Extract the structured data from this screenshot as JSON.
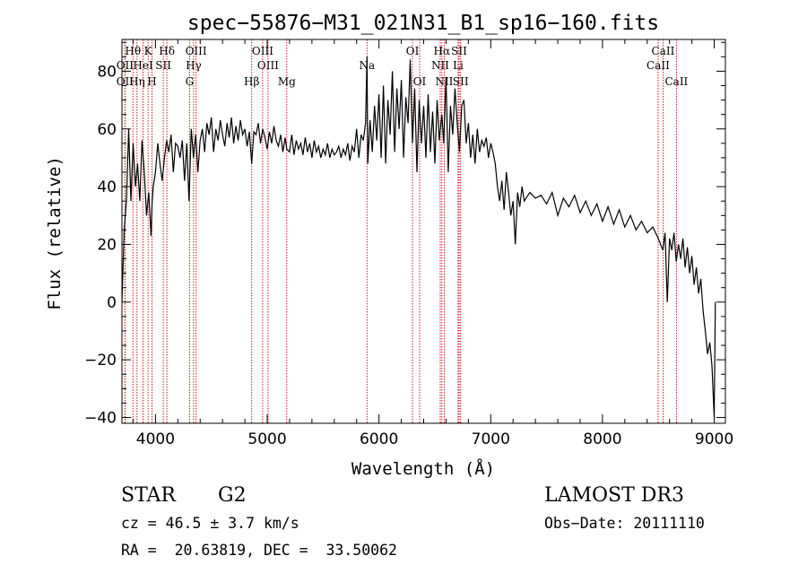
{
  "chart_data": {
    "type": "line",
    "title": "spec−55876−M31_021N31_B1_sp16−160.fits",
    "xlabel": "Wavelength (Å)",
    "ylabel": "Flux (relative)",
    "xlim": [
      3700,
      9100
    ],
    "ylim": [
      -42,
      91
    ],
    "xticks": [
      4000,
      5000,
      6000,
      7000,
      8000,
      9000
    ],
    "xtick_labels": [
      "4000",
      "5000",
      "6000",
      "7000",
      "8000",
      "9000"
    ],
    "yticks": [
      -40,
      -20,
      0,
      20,
      40,
      60,
      80
    ],
    "ytick_labels": [
      "−40",
      "−20",
      "0",
      "20",
      "40",
      "60",
      "80"
    ],
    "x_minor_step": 200,
    "y_minor_step": 5,
    "spectrum": {
      "name": "flux",
      "x": [
        3700,
        3720,
        3740,
        3760,
        3780,
        3800,
        3820,
        3840,
        3860,
        3880,
        3900,
        3920,
        3940,
        3960,
        3970,
        3980,
        4000,
        4020,
        4040,
        4060,
        4080,
        4100,
        4120,
        4140,
        4160,
        4180,
        4200,
        4220,
        4240,
        4260,
        4280,
        4300,
        4320,
        4340,
        4360,
        4380,
        4400,
        4420,
        4440,
        4460,
        4480,
        4500,
        4520,
        4540,
        4560,
        4580,
        4600,
        4620,
        4640,
        4660,
        4680,
        4700,
        4720,
        4740,
        4760,
        4780,
        4800,
        4820,
        4840,
        4861,
        4880,
        4900,
        4920,
        4940,
        4960,
        4980,
        5000,
        5020,
        5040,
        5060,
        5080,
        5100,
        5120,
        5140,
        5160,
        5175,
        5200,
        5220,
        5240,
        5260,
        5280,
        5300,
        5320,
        5340,
        5360,
        5380,
        5400,
        5420,
        5440,
        5460,
        5480,
        5500,
        5520,
        5540,
        5560,
        5580,
        5600,
        5620,
        5640,
        5660,
        5680,
        5700,
        5720,
        5740,
        5760,
        5780,
        5800,
        5820,
        5840,
        5860,
        5880,
        5893,
        5900,
        5920,
        5940,
        5960,
        5980,
        6000,
        6020,
        6040,
        6060,
        6080,
        6100,
        6120,
        6140,
        6160,
        6180,
        6200,
        6220,
        6240,
        6260,
        6280,
        6300,
        6320,
        6340,
        6360,
        6380,
        6400,
        6420,
        6440,
        6460,
        6480,
        6500,
        6520,
        6540,
        6563,
        6580,
        6600,
        6620,
        6640,
        6660,
        6680,
        6700,
        6720,
        6740,
        6760,
        6780,
        6800,
        6820,
        6840,
        6860,
        6880,
        6900,
        6920,
        6940,
        6960,
        6980,
        7000,
        7020,
        7040,
        7060,
        7080,
        7100,
        7120,
        7140,
        7160,
        7180,
        7200,
        7220,
        7240,
        7260,
        7280,
        7300,
        7350,
        7400,
        7450,
        7500,
        7550,
        7600,
        7650,
        7700,
        7750,
        7800,
        7850,
        7900,
        7950,
        8000,
        8050,
        8100,
        8150,
        8200,
        8250,
        8300,
        8350,
        8400,
        8450,
        8500,
        8520,
        8540,
        8560,
        8580,
        8600,
        8620,
        8640,
        8660,
        8680,
        8700,
        8720,
        8740,
        8760,
        8780,
        8800,
        8820,
        8840,
        8860,
        8880,
        8900,
        8920,
        8940,
        8960,
        8980,
        9000,
        9010
      ],
      "y": [
        0,
        25,
        35,
        60,
        35,
        55,
        40,
        48,
        35,
        56,
        45,
        30,
        38,
        23,
        35,
        40,
        45,
        55,
        48,
        42,
        50,
        56,
        52,
        58,
        45,
        55,
        54,
        50,
        56,
        42,
        55,
        35,
        60,
        50,
        58,
        45,
        56,
        60,
        52,
        62,
        58,
        64,
        52,
        60,
        56,
        63,
        58,
        54,
        62,
        57,
        64,
        55,
        61,
        56,
        63,
        58,
        60,
        54,
        59,
        48,
        59,
        58,
        62,
        55,
        60,
        57,
        53,
        59,
        55,
        61,
        56,
        54,
        58,
        52,
        57,
        53,
        52,
        58,
        51,
        56,
        53,
        55,
        51,
        57,
        52,
        55,
        50,
        56,
        52,
        54,
        50,
        53,
        51,
        55,
        50,
        53,
        51,
        52,
        54,
        50,
        53,
        51,
        55,
        49,
        54,
        52,
        60,
        50,
        58,
        56,
        62,
        85,
        48,
        63,
        52,
        68,
        56,
        72,
        50,
        75,
        48,
        70,
        58,
        80,
        52,
        74,
        60,
        77,
        50,
        71,
        62,
        84,
        55,
        74,
        45,
        70,
        55,
        68,
        50,
        72,
        52,
        66,
        48,
        70,
        56,
        65,
        55,
        78,
        45,
        68,
        58,
        74,
        62,
        52,
        68,
        70,
        55,
        62,
        50,
        58,
        48,
        60,
        52,
        56,
        54,
        57,
        50,
        55,
        52,
        48,
        40,
        35,
        42,
        32,
        45,
        38,
        30,
        35,
        20,
        38,
        33,
        40,
        35,
        38,
        36,
        37,
        34,
        38,
        30,
        36,
        33,
        37,
        31,
        35,
        30,
        34,
        28,
        33,
        27,
        32,
        26,
        30,
        25,
        28,
        24,
        26,
        22,
        20,
        18,
        24,
        0,
        22,
        18,
        24,
        14,
        20,
        15,
        22,
        12,
        19,
        10,
        16,
        6,
        12,
        3,
        8,
        -3,
        -10,
        -18,
        -14,
        -22,
        -40,
        0
      ]
    },
    "line_markers": [
      {
        "label": "Hθ",
        "x": 3798,
        "row": 0
      },
      {
        "label": "OII",
        "x": 3727,
        "row": 1
      },
      {
        "label": "OII",
        "x": 3727,
        "row": 2
      },
      {
        "label": "Hη",
        "x": 3835,
        "row": 2
      },
      {
        "label": "K",
        "x": 3934,
        "row": 0
      },
      {
        "label": "HeI",
        "x": 3889,
        "row": 1
      },
      {
        "label": "SII",
        "x": 4070,
        "row": 1
      },
      {
        "label": "H",
        "x": 3969,
        "row": 2
      },
      {
        "label": "Hδ",
        "x": 4102,
        "row": 0
      },
      {
        "label": "OIII",
        "x": 4363,
        "row": 0
      },
      {
        "label": "Hγ",
        "x": 4341,
        "row": 1
      },
      {
        "label": "G",
        "x": 4305,
        "row": 2
      },
      {
        "label": "OIII",
        "x": 4959,
        "row": 0
      },
      {
        "label": "OIII",
        "x": 5007,
        "row": 1
      },
      {
        "label": "Hβ",
        "x": 4861,
        "row": 2
      },
      {
        "label": "Mg",
        "x": 5175,
        "row": 2
      },
      {
        "label": "Na",
        "x": 5893,
        "row": 1
      },
      {
        "label": "OI",
        "x": 6300,
        "row": 0
      },
      {
        "label": "OI",
        "x": 6364,
        "row": 2
      },
      {
        "label": "Hα",
        "x": 6563,
        "row": 0
      },
      {
        "label": "SII",
        "x": 6717,
        "row": 0
      },
      {
        "label": "NII",
        "x": 6548,
        "row": 1
      },
      {
        "label": "Li",
        "x": 6708,
        "row": 1
      },
      {
        "label": "NII",
        "x": 6584,
        "row": 2
      },
      {
        "label": "SII",
        "x": 6731,
        "row": 2
      },
      {
        "label": "CaII",
        "x": 8542,
        "row": 0
      },
      {
        "label": "CaII",
        "x": 8498,
        "row": 1
      },
      {
        "label": "CaII",
        "x": 8662,
        "row": 2
      }
    ],
    "colors": {
      "spectrum": "#000000",
      "marker_line": "#cc0000",
      "axes": "#000000"
    }
  },
  "info": {
    "object_class": "STAR",
    "subclass": "G2",
    "survey": "LAMOST DR3",
    "cz_line": "cz = 46.5 ± 3.7 km/s",
    "obs_date_line": "Obs−Date: 20111110",
    "coords_line": "RA =  20.63819, DEC =  33.50062"
  }
}
